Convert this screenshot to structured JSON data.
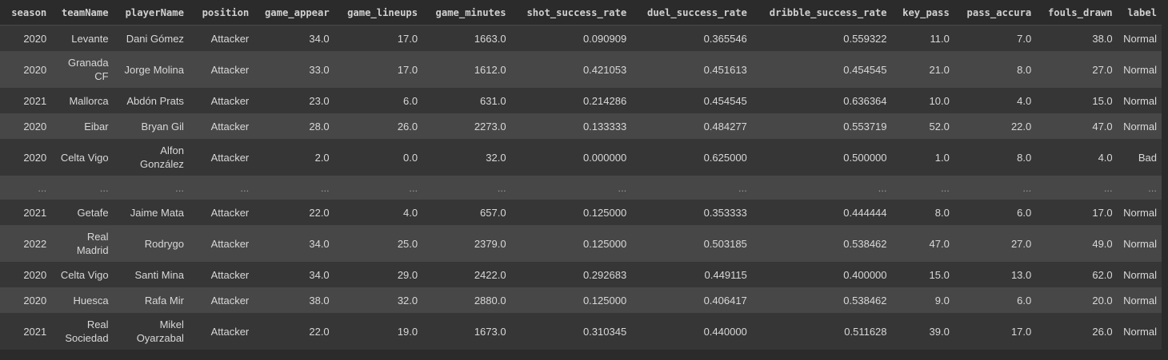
{
  "dataframe": {
    "columns": [
      "season",
      "teamName",
      "playerName",
      "position",
      "game_appear",
      "game_lineups",
      "game_minutes",
      "shot_success_rate",
      "duel_success_rate",
      "dribble_success_rate",
      "key_pass",
      "pass_accura",
      "fouls_drawn",
      "label"
    ],
    "rows": [
      [
        "2020",
        "Levante",
        "Dani Gómez",
        "Attacker",
        "34.0",
        "17.0",
        "1663.0",
        "0.090909",
        "0.365546",
        "0.559322",
        "11.0",
        "7.0",
        "38.0",
        "Normal"
      ],
      [
        "2020",
        "Granada CF",
        "Jorge Molina",
        "Attacker",
        "33.0",
        "17.0",
        "1612.0",
        "0.421053",
        "0.451613",
        "0.454545",
        "21.0",
        "8.0",
        "27.0",
        "Normal"
      ],
      [
        "2021",
        "Mallorca",
        "Abdón Prats",
        "Attacker",
        "23.0",
        "6.0",
        "631.0",
        "0.214286",
        "0.454545",
        "0.636364",
        "10.0",
        "4.0",
        "15.0",
        "Normal"
      ],
      [
        "2020",
        "Eibar",
        "Bryan Gil",
        "Attacker",
        "28.0",
        "26.0",
        "2273.0",
        "0.133333",
        "0.484277",
        "0.553719",
        "52.0",
        "22.0",
        "47.0",
        "Normal"
      ],
      [
        "2020",
        "Celta Vigo",
        "Alfon González",
        "Attacker",
        "2.0",
        "0.0",
        "32.0",
        "0.000000",
        "0.625000",
        "0.500000",
        "1.0",
        "8.0",
        "4.0",
        "Bad"
      ],
      [
        "...",
        "...",
        "...",
        "...",
        "...",
        "...",
        "...",
        "...",
        "...",
        "...",
        "...",
        "...",
        "...",
        "..."
      ],
      [
        "2021",
        "Getafe",
        "Jaime Mata",
        "Attacker",
        "22.0",
        "4.0",
        "657.0",
        "0.125000",
        "0.353333",
        "0.444444",
        "8.0",
        "6.0",
        "17.0",
        "Normal"
      ],
      [
        "2022",
        "Real Madrid",
        "Rodrygo",
        "Attacker",
        "34.0",
        "25.0",
        "2379.0",
        "0.125000",
        "0.503185",
        "0.538462",
        "47.0",
        "27.0",
        "49.0",
        "Normal"
      ],
      [
        "2020",
        "Celta Vigo",
        "Santi Mina",
        "Attacker",
        "34.0",
        "29.0",
        "2422.0",
        "0.292683",
        "0.449115",
        "0.400000",
        "15.0",
        "13.0",
        "62.0",
        "Normal"
      ],
      [
        "2020",
        "Huesca",
        "Rafa Mir",
        "Attacker",
        "38.0",
        "32.0",
        "2880.0",
        "0.125000",
        "0.406417",
        "0.538462",
        "9.0",
        "6.0",
        "20.0",
        "Normal"
      ],
      [
        "2021",
        "Real Sociedad",
        "Mikel Oyarzabal",
        "Attacker",
        "22.0",
        "19.0",
        "1673.0",
        "0.310345",
        "0.440000",
        "0.511628",
        "39.0",
        "17.0",
        "26.0",
        "Normal"
      ]
    ]
  },
  "theme": {
    "background": "#2b2b2b",
    "row_odd": "#363636",
    "row_even": "#474747",
    "text": "#d8d8d8"
  }
}
